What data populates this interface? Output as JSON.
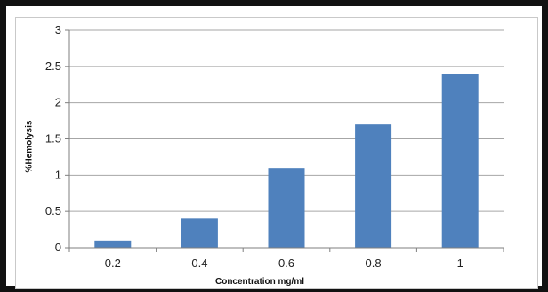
{
  "chart_data": {
    "type": "bar",
    "title": "",
    "xlabel": "Concentration mg/ml",
    "ylabel": "%Hemolysis",
    "categories": [
      "0.2",
      "0.4",
      "0.6",
      "0.8",
      "1"
    ],
    "values": [
      0.1,
      0.4,
      1.1,
      1.7,
      2.4
    ],
    "ylim": [
      0,
      3
    ],
    "yticks": [
      "0",
      "0.5",
      "1",
      "1.5",
      "2",
      "2.5",
      "3"
    ],
    "grid": true,
    "legend": "none",
    "colors": {
      "bar": "#4f81bd",
      "grid": "#a6a6a6",
      "axis": "#7f7f7f"
    }
  }
}
